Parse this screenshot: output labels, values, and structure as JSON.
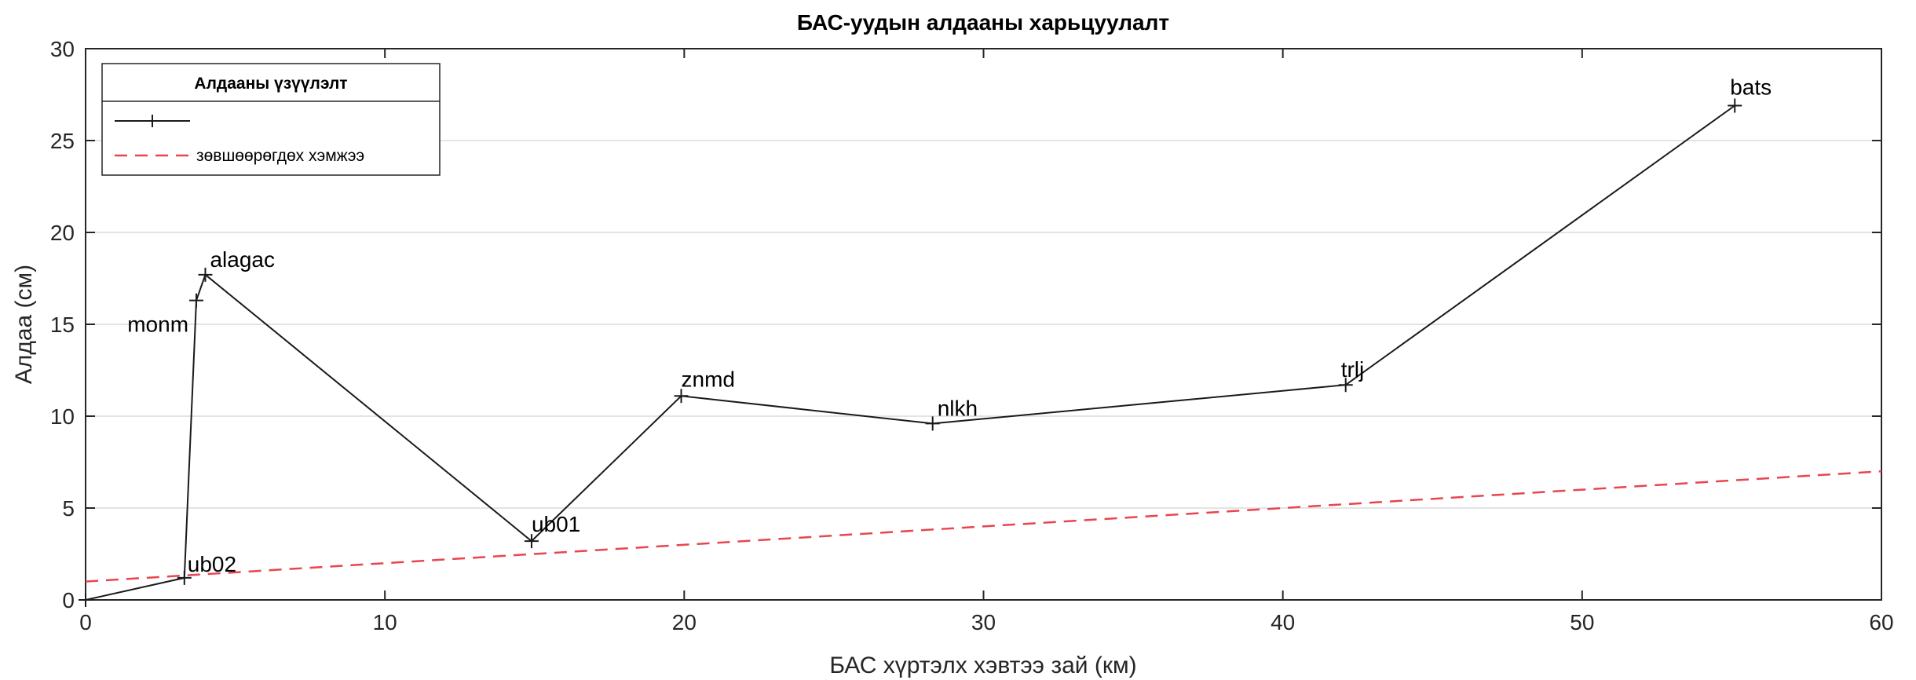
{
  "chart_data": {
    "type": "line",
    "title": "БАС-уудын алдааны харьцуулалт",
    "xlabel": "БАС хүртэлх хэвтээ зай (км)",
    "ylabel": "Алдаа (см)",
    "xlim": [
      0,
      60
    ],
    "ylim": [
      0,
      30
    ],
    "xticks": [
      0,
      10,
      20,
      30,
      40,
      50,
      60
    ],
    "yticks": [
      0,
      5,
      10,
      15,
      20,
      25,
      30
    ],
    "grid": "y-major",
    "legend": {
      "title": "Алдааны үзүүлэлт",
      "placement": "top-left",
      "entries": [
        "",
        "зөвшөөрөгдөх хэмжээ"
      ]
    },
    "series": [
      {
        "style": "black solid line with plus markers",
        "color": "#1a1a1a",
        "points": [
          {
            "x": 0,
            "y": 0,
            "label": ""
          },
          {
            "x": 3.3,
            "y": 1.2,
            "label": "ub02"
          },
          {
            "x": 3.7,
            "y": 16.3,
            "label": "monm"
          },
          {
            "x": 4.0,
            "y": 17.7,
            "label": "alagac"
          },
          {
            "x": 14.9,
            "y": 3.2,
            "label": "ub01"
          },
          {
            "x": 19.9,
            "y": 11.1,
            "label": "znmd"
          },
          {
            "x": 28.3,
            "y": 9.6,
            "label": "nlkh"
          },
          {
            "x": 42.1,
            "y": 11.7,
            "label": "trlj"
          },
          {
            "x": 55.1,
            "y": 26.9,
            "label": "bats"
          }
        ]
      },
      {
        "name": "зөвшөөрөгдөх хэмжээ",
        "style": "red dashed line",
        "color": "#e8454f",
        "points": [
          {
            "x": 0,
            "y": 1.0
          },
          {
            "x": 60,
            "y": 7.0
          }
        ]
      }
    ]
  }
}
